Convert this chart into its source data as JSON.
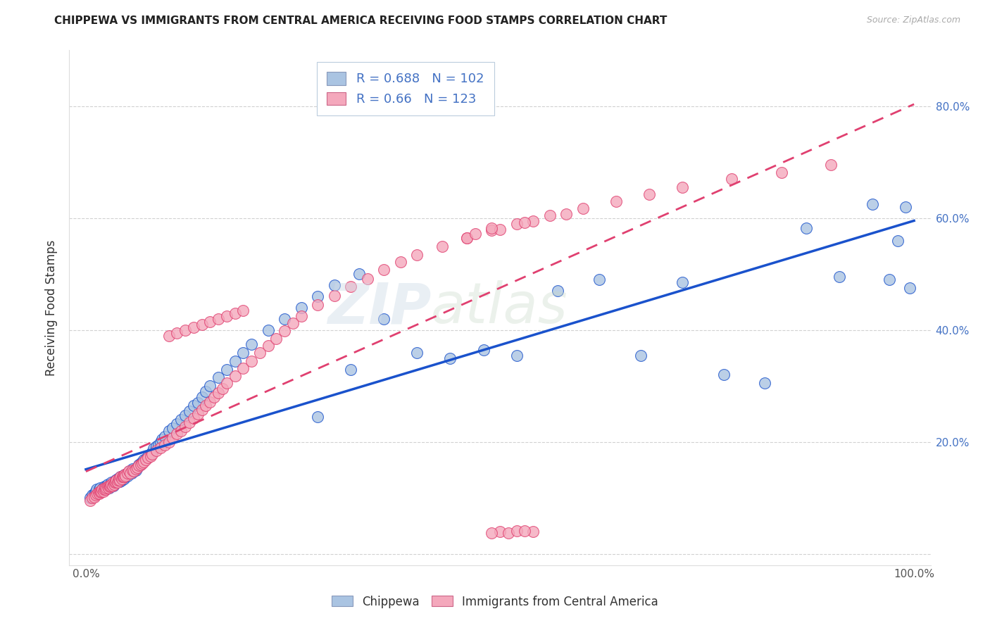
{
  "title": "CHIPPEWA VS IMMIGRANTS FROM CENTRAL AMERICA RECEIVING FOOD STAMPS CORRELATION CHART",
  "source": "Source: ZipAtlas.com",
  "ylabel": "Receiving Food Stamps",
  "legend_label1": "Chippewa",
  "legend_label2": "Immigrants from Central America",
  "R1": 0.688,
  "N1": 102,
  "R2": 0.66,
  "N2": 123,
  "color1": "#aac4e2",
  "color2": "#f4a8bc",
  "line_color1": "#1a52cc",
  "line_color2": "#e04070",
  "xlim": [
    -0.02,
    1.02
  ],
  "ylim": [
    -0.02,
    0.9
  ],
  "xticks": [
    0.0,
    0.2,
    0.4,
    0.6,
    0.8,
    1.0
  ],
  "yticks": [
    0.0,
    0.2,
    0.4,
    0.6,
    0.8
  ],
  "xticklabels": [
    "0.0%",
    "",
    "",
    "",
    "",
    "100.0%"
  ],
  "yticklabels_right": [
    "",
    "20.0%",
    "40.0%",
    "60.0%",
    "80.0%"
  ],
  "chippewa_x": [
    0.005,
    0.008,
    0.01,
    0.012,
    0.013,
    0.015,
    0.016,
    0.017,
    0.018,
    0.02,
    0.021,
    0.022,
    0.023,
    0.024,
    0.025,
    0.026,
    0.027,
    0.028,
    0.029,
    0.03,
    0.031,
    0.032,
    0.033,
    0.034,
    0.035,
    0.036,
    0.037,
    0.038,
    0.04,
    0.041,
    0.042,
    0.043,
    0.044,
    0.045,
    0.046,
    0.047,
    0.048,
    0.05,
    0.052,
    0.053,
    0.055,
    0.056,
    0.058,
    0.06,
    0.062,
    0.064,
    0.065,
    0.066,
    0.068,
    0.07,
    0.072,
    0.075,
    0.078,
    0.08,
    0.082,
    0.085,
    0.088,
    0.09,
    0.092,
    0.095,
    0.1,
    0.105,
    0.11,
    0.115,
    0.12,
    0.125,
    0.13,
    0.135,
    0.14,
    0.145,
    0.15,
    0.16,
    0.17,
    0.18,
    0.19,
    0.2,
    0.22,
    0.24,
    0.26,
    0.28,
    0.3,
    0.33,
    0.36,
    0.4,
    0.44,
    0.48,
    0.52,
    0.57,
    0.62,
    0.67,
    0.72,
    0.77,
    0.82,
    0.87,
    0.91,
    0.95,
    0.97,
    0.98,
    0.99,
    0.995,
    0.28,
    0.32
  ],
  "chippewa_y": [
    0.1,
    0.105,
    0.108,
    0.112,
    0.115,
    0.11,
    0.115,
    0.118,
    0.112,
    0.115,
    0.118,
    0.12,
    0.118,
    0.115,
    0.122,
    0.125,
    0.12,
    0.118,
    0.122,
    0.125,
    0.128,
    0.125,
    0.122,
    0.128,
    0.13,
    0.132,
    0.128,
    0.135,
    0.135,
    0.13,
    0.138,
    0.132,
    0.14,
    0.138,
    0.135,
    0.142,
    0.138,
    0.14,
    0.145,
    0.148,
    0.145,
    0.152,
    0.148,
    0.15,
    0.155,
    0.16,
    0.158,
    0.162,
    0.165,
    0.168,
    0.17,
    0.175,
    0.178,
    0.182,
    0.188,
    0.192,
    0.195,
    0.2,
    0.205,
    0.21,
    0.22,
    0.225,
    0.232,
    0.24,
    0.248,
    0.255,
    0.265,
    0.27,
    0.28,
    0.29,
    0.3,
    0.315,
    0.33,
    0.345,
    0.36,
    0.375,
    0.4,
    0.42,
    0.44,
    0.46,
    0.48,
    0.5,
    0.42,
    0.36,
    0.35,
    0.365,
    0.355,
    0.47,
    0.49,
    0.355,
    0.485,
    0.32,
    0.305,
    0.582,
    0.495,
    0.625,
    0.49,
    0.56,
    0.62,
    0.475,
    0.245,
    0.33
  ],
  "central_america_x": [
    0.005,
    0.008,
    0.01,
    0.012,
    0.014,
    0.015,
    0.016,
    0.017,
    0.018,
    0.019,
    0.02,
    0.021,
    0.022,
    0.023,
    0.024,
    0.025,
    0.026,
    0.027,
    0.028,
    0.029,
    0.03,
    0.031,
    0.032,
    0.033,
    0.034,
    0.035,
    0.036,
    0.037,
    0.038,
    0.039,
    0.04,
    0.041,
    0.042,
    0.043,
    0.044,
    0.045,
    0.046,
    0.047,
    0.048,
    0.05,
    0.052,
    0.054,
    0.056,
    0.058,
    0.06,
    0.062,
    0.064,
    0.066,
    0.068,
    0.07,
    0.072,
    0.075,
    0.078,
    0.08,
    0.085,
    0.09,
    0.095,
    0.1,
    0.105,
    0.11,
    0.115,
    0.12,
    0.125,
    0.13,
    0.135,
    0.14,
    0.145,
    0.15,
    0.155,
    0.16,
    0.165,
    0.17,
    0.18,
    0.19,
    0.2,
    0.21,
    0.22,
    0.23,
    0.24,
    0.25,
    0.26,
    0.28,
    0.3,
    0.32,
    0.34,
    0.36,
    0.38,
    0.4,
    0.43,
    0.46,
    0.49,
    0.52,
    0.56,
    0.6,
    0.64,
    0.68,
    0.72,
    0.78,
    0.84,
    0.9,
    0.46,
    0.5,
    0.54,
    0.58,
    0.47,
    0.53,
    0.49,
    0.5,
    0.51,
    0.52,
    0.49,
    0.54,
    0.53,
    0.1,
    0.11,
    0.12,
    0.13,
    0.14,
    0.15,
    0.16,
    0.17,
    0.18,
    0.19
  ],
  "central_america_y": [
    0.095,
    0.1,
    0.102,
    0.105,
    0.108,
    0.11,
    0.108,
    0.112,
    0.11,
    0.112,
    0.115,
    0.112,
    0.115,
    0.118,
    0.115,
    0.118,
    0.12,
    0.118,
    0.122,
    0.12,
    0.122,
    0.125,
    0.122,
    0.128,
    0.125,
    0.128,
    0.13,
    0.132,
    0.128,
    0.132,
    0.135,
    0.132,
    0.138,
    0.135,
    0.138,
    0.14,
    0.138,
    0.142,
    0.14,
    0.145,
    0.148,
    0.145,
    0.15,
    0.148,
    0.152,
    0.155,
    0.158,
    0.16,
    0.162,
    0.165,
    0.168,
    0.172,
    0.175,
    0.178,
    0.185,
    0.19,
    0.195,
    0.2,
    0.208,
    0.215,
    0.22,
    0.228,
    0.235,
    0.242,
    0.25,
    0.258,
    0.265,
    0.272,
    0.28,
    0.288,
    0.295,
    0.305,
    0.318,
    0.332,
    0.345,
    0.36,
    0.372,
    0.385,
    0.398,
    0.412,
    0.425,
    0.445,
    0.462,
    0.478,
    0.492,
    0.508,
    0.522,
    0.535,
    0.55,
    0.565,
    0.578,
    0.59,
    0.605,
    0.618,
    0.63,
    0.642,
    0.655,
    0.67,
    0.682,
    0.695,
    0.565,
    0.58,
    0.595,
    0.608,
    0.572,
    0.592,
    0.582,
    0.04,
    0.038,
    0.042,
    0.038,
    0.04,
    0.042,
    0.39,
    0.395,
    0.4,
    0.405,
    0.41,
    0.415,
    0.42,
    0.425,
    0.43,
    0.435
  ]
}
